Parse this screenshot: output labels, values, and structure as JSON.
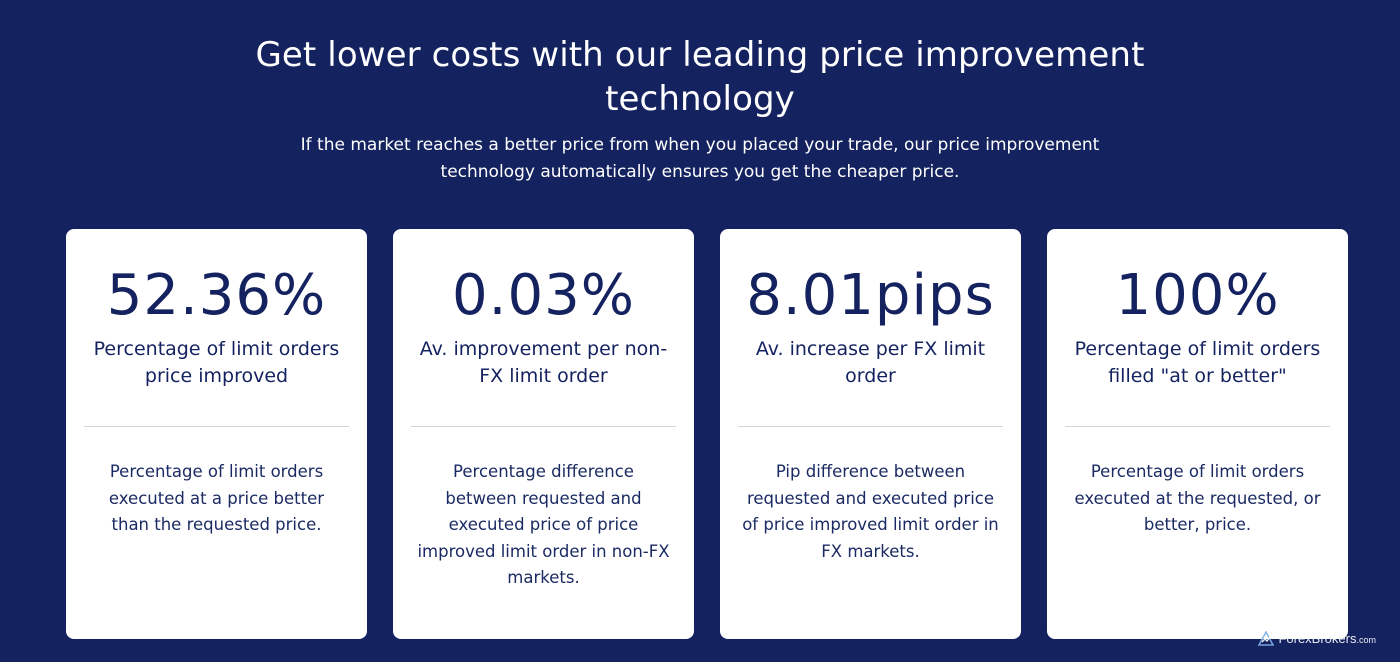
{
  "hero": {
    "title_line1": "Get lower costs with our leading price improvement",
    "title_line2": "technology",
    "subtitle_line1": "If the market reaches a better price from when you placed your trade, our price improvement",
    "subtitle_line2": "technology automatically ensures you get the cheaper price."
  },
  "cards": [
    {
      "value": "52.36%",
      "label_lines": [
        "Percentage of limit orders",
        "price improved"
      ],
      "desc_lines": [
        "Percentage of limit orders",
        "executed at a price better",
        "than the requested price."
      ]
    },
    {
      "value": "0.03%",
      "label_lines": [
        "Av. improvement per non-",
        "FX limit order"
      ],
      "desc_lines": [
        "Percentage difference",
        "between requested and",
        "executed price of price",
        "improved limit order in non-FX",
        "markets."
      ]
    },
    {
      "value": "8.01pips",
      "label_lines": [
        "Av. increase per FX limit",
        "order"
      ],
      "desc_lines": [
        "Pip difference between",
        "requested and executed price",
        "of price improved limit order in",
        "FX markets."
      ]
    },
    {
      "value": "100%",
      "label_lines": [
        "Percentage of limit orders",
        "filled \"at or better\""
      ],
      "desc_lines": [
        "Percentage of limit orders",
        "executed at the requested, or",
        "better, price."
      ]
    }
  ],
  "watermark": {
    "brand": "ForexBrokers",
    "suffix": ".com",
    "icon": "forexbrokers-logo-icon"
  },
  "colors": {
    "background": "#14225f",
    "card_background": "#ffffff",
    "card_text": "#14225f",
    "divider": "#d3d5dc"
  }
}
